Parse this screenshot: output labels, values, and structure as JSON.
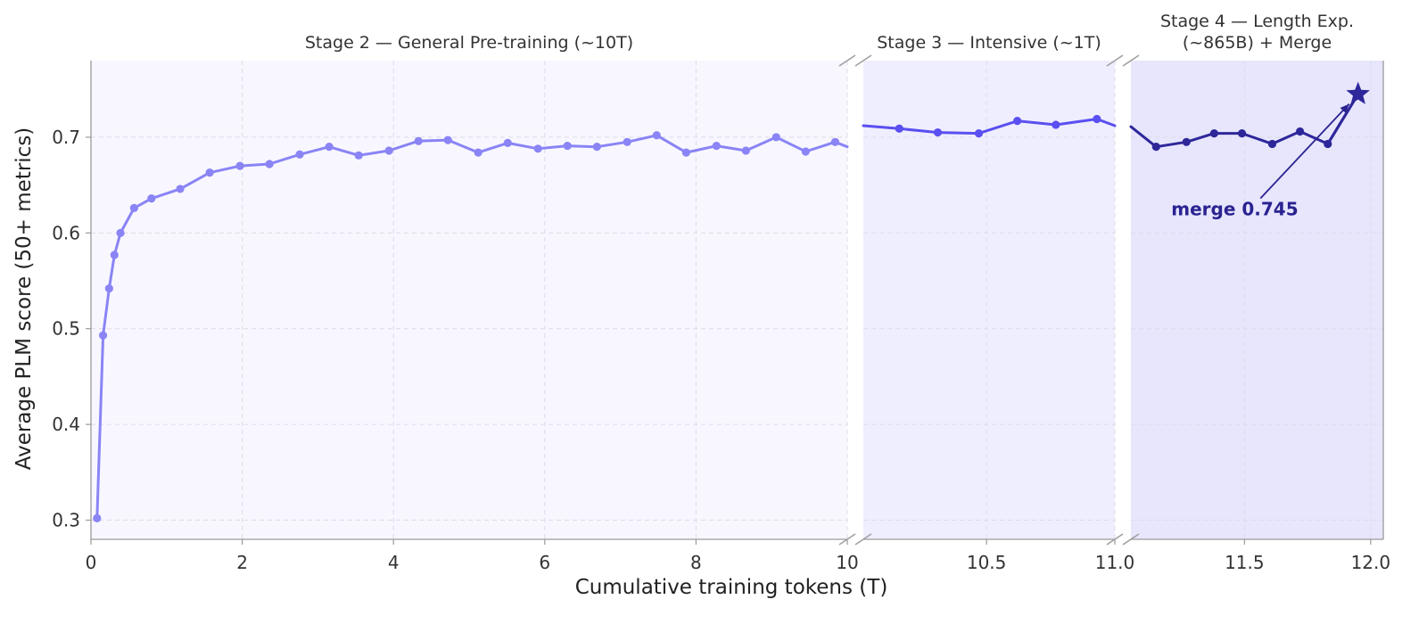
{
  "chart_data": {
    "type": "line",
    "title": "",
    "xlabel": "Cumulative training tokens (T)",
    "ylabel": "Average PLM score (50+ metrics)",
    "ylim": [
      0.28,
      0.78
    ],
    "yticks": [
      0.3,
      0.4,
      0.5,
      0.6,
      0.7
    ],
    "ytick_labels": [
      "0.3",
      "0.4",
      "0.5",
      "0.6",
      "0.7"
    ],
    "grid": true,
    "broken_x_axis": true,
    "panels": [
      {
        "title": "Stage 2 — General Pre-training (~10T)",
        "xlim": [
          0,
          10
        ],
        "xticks": [
          0,
          2,
          4,
          6,
          8,
          10
        ],
        "xtick_labels": [
          "0",
          "2",
          "4",
          "6",
          "8",
          "10"
        ],
        "background": "#f8f7ff",
        "color": "#8a84f5",
        "series": [
          {
            "x": [
              0.08,
              0.16,
              0.24,
              0.31,
              0.39,
              0.57,
              0.8,
              1.18,
              1.57,
              1.97,
              2.36,
              2.76,
              3.15,
              3.54,
              3.94,
              4.33,
              4.72,
              5.12,
              5.51,
              5.91,
              6.3,
              6.69,
              7.09,
              7.48,
              7.87,
              8.27,
              8.66,
              9.06,
              9.45,
              9.84,
              10.0
            ],
            "y": [
              0.302,
              0.493,
              0.542,
              0.577,
              0.6,
              0.626,
              0.636,
              0.646,
              0.663,
              0.67,
              0.672,
              0.682,
              0.69,
              0.681,
              0.686,
              0.696,
              0.697,
              0.684,
              0.694,
              0.688,
              0.691,
              0.69,
              0.695,
              0.702,
              0.684,
              0.691,
              0.686,
              0.7,
              0.685,
              0.695,
              0.69
            ]
          }
        ]
      },
      {
        "title": "Stage 3 — Intensive (~1T)",
        "xlim": [
          10.02,
          11.0
        ],
        "xticks": [
          10.5,
          11.0
        ],
        "xtick_labels": [
          "10.5",
          "11.0"
        ],
        "background": "#efeefe",
        "color": "#5a4ff0",
        "series": [
          {
            "x": [
              10.02,
              10.16,
              10.31,
              10.47,
              10.62,
              10.77,
              10.93,
              11.0
            ],
            "y": [
              0.712,
              0.709,
              0.705,
              0.704,
              0.717,
              0.713,
              0.719,
              0.712
            ]
          }
        ]
      },
      {
        "title": "Stage 4 — Length Exp.\n(~865B) + Merge",
        "xlim": [
          11.05,
          12.05
        ],
        "xticks": [
          11.5,
          12.0
        ],
        "xtick_labels": [
          "11.5",
          "12.0"
        ],
        "background": "#e7e6fd",
        "color": "#2e279a",
        "series": [
          {
            "x": [
              11.05,
              11.15,
              11.27,
              11.38,
              11.49,
              11.61,
              11.72,
              11.83
            ],
            "y": [
              0.711,
              0.69,
              0.695,
              0.704,
              0.704,
              0.693,
              0.706,
              0.693
            ]
          }
        ],
        "merge": {
          "from": [
            11.83,
            0.693
          ],
          "point": [
            11.95,
            0.745
          ],
          "label": "merge 0.745",
          "label_at": [
            11.21,
            0.625
          ]
        }
      }
    ],
    "colors": {
      "axis": "#9a9a9a",
      "grid": "#dcdce6",
      "break": "#a0a0a0",
      "star": "#2e279a",
      "annotation": "#2a2390"
    }
  }
}
